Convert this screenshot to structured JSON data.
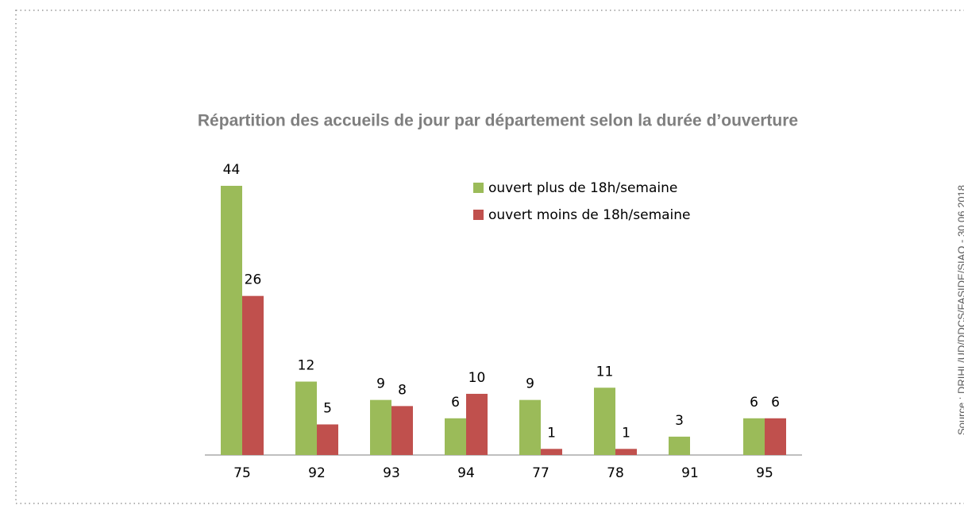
{
  "chart_data": {
    "type": "bar",
    "title": "Répartition des accueils de jour par département selon la durée d’ouverture",
    "source": "Source : DRIHL/UD/DDCS/FASIDE/SIAO - 30.06.2018",
    "categories": [
      "75",
      "92",
      "93",
      "94",
      "77",
      "78",
      "91",
      "95"
    ],
    "series": [
      {
        "name": "ouvert plus de 18h/semaine",
        "color": "#9bbb59",
        "values": [
          44,
          12,
          9,
          6,
          9,
          11,
          3,
          6
        ]
      },
      {
        "name": "ouvert moins de 18h/semaine",
        "color": "#c0504d",
        "values": [
          26,
          5,
          8,
          10,
          1,
          1,
          null,
          6
        ]
      }
    ]
  }
}
